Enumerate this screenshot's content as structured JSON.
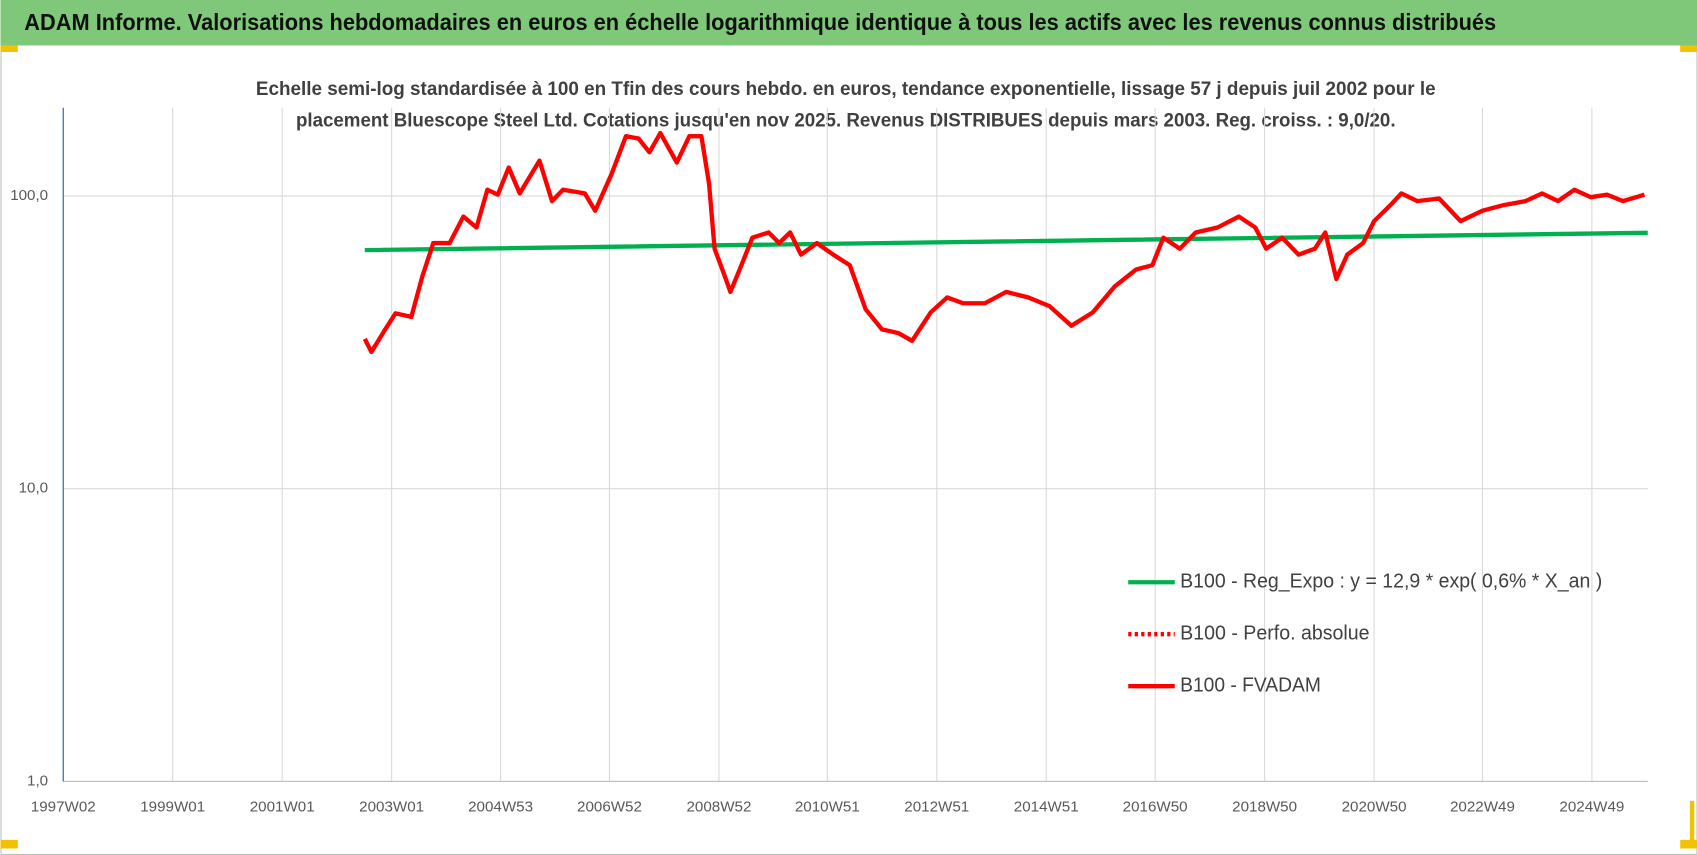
{
  "chart_data": {
    "type": "line",
    "title": "ADAM Informe. Valorisations hebdomadaires en euros en échelle logarithmique identique à tous les actifs avec les revenus connus distribués",
    "subtitle": [
      "Echelle semi-log standardisée à 100 en Tfin des cours hebdo. en euros, tendance exponentielle, lissage 57 j depuis juil 2002 pour le",
      "placement Bluescope Steel Ltd. Cotations jusqu'en nov 2025. Revenus DISTRIBUES depuis mars 2003. Reg. croiss. : 9,0/20."
    ],
    "log_scale": true,
    "grid": true,
    "legend_position": "right",
    "xlim": [
      1997.0,
      2025.95
    ],
    "xticks": [
      {
        "value": 1997.0,
        "label": "1997W02"
      },
      {
        "value": 1999.0,
        "label": "1999W01"
      },
      {
        "value": 2001.0,
        "label": "2001W01"
      },
      {
        "value": 2003.0,
        "label": "2003W01"
      },
      {
        "value": 2004.99,
        "label": "2004W53"
      },
      {
        "value": 2006.98,
        "label": "2006W52"
      },
      {
        "value": 2008.98,
        "label": "2008W52"
      },
      {
        "value": 2010.96,
        "label": "2010W51"
      },
      {
        "value": 2012.96,
        "label": "2012W51"
      },
      {
        "value": 2014.96,
        "label": "2014W51"
      },
      {
        "value": 2016.95,
        "label": "2016W50"
      },
      {
        "value": 2018.95,
        "label": "2018W50"
      },
      {
        "value": 2020.95,
        "label": "2020W50"
      },
      {
        "value": 2022.93,
        "label": "2022W49"
      },
      {
        "value": 2024.93,
        "label": "2024W49"
      }
    ],
    "ylim": [
      1,
      200
    ],
    "yticks": [
      {
        "value": 1,
        "label": "1,0"
      },
      {
        "value": 10,
        "label": "10,0"
      },
      {
        "value": 100,
        "label": "100,0"
      }
    ],
    "series": [
      {
        "name": "B100 - Reg_Expo : y = 12,9 * exp( 0,6% *  X_an )",
        "color": "#00b050",
        "style": "solid",
        "x": [
          2002.51,
          2014.2,
          2025.95
        ],
        "values": [
          65.3,
          69.9,
          74.8
        ]
      },
      {
        "name": "B100 - Perfo. absolue",
        "color": "#ff0000",
        "style": "dotted",
        "x": [],
        "values": []
      },
      {
        "name": "B100 - FVADAM",
        "color": "#ff0000",
        "style": "solid",
        "x": [
          2002.51,
          2002.63,
          2002.87,
          2003.07,
          2003.36,
          2003.56,
          2003.76,
          2004.06,
          2004.31,
          2004.55,
          2004.75,
          2004.94,
          2005.14,
          2005.34,
          2005.7,
          2005.93,
          2006.13,
          2006.53,
          2006.72,
          2007.02,
          2007.28,
          2007.51,
          2007.71,
          2007.91,
          2008.21,
          2008.44,
          2008.66,
          2008.8,
          2008.9,
          2009.09,
          2009.19,
          2009.39,
          2009.59,
          2009.89,
          2010.08,
          2010.28,
          2010.48,
          2010.77,
          2011.07,
          2011.37,
          2011.66,
          2011.96,
          2012.26,
          2012.51,
          2012.85,
          2013.15,
          2013.44,
          2013.84,
          2014.23,
          2014.63,
          2015.02,
          2015.42,
          2015.81,
          2016.21,
          2016.6,
          2016.9,
          2017.1,
          2017.4,
          2017.69,
          2018.09,
          2018.48,
          2018.78,
          2018.98,
          2019.27,
          2019.57,
          2019.87,
          2020.06,
          2020.26,
          2020.46,
          2020.75,
          2020.95,
          2021.25,
          2021.45,
          2021.74,
          2022.14,
          2022.53,
          2022.93,
          2023.32,
          2023.72,
          2024.02,
          2024.31,
          2024.61,
          2024.91,
          2025.21,
          2025.5,
          2025.89
        ],
        "values": [
          32.5,
          29.3,
          34.7,
          39.7,
          38.6,
          53,
          69,
          69,
          85,
          78,
          105,
          101,
          125,
          102,
          132,
          96,
          105,
          102,
          89,
          119,
          160,
          157,
          141,
          164,
          130,
          160,
          160,
          110,
          66,
          53,
          47,
          58,
          72,
          75,
          69,
          75,
          63,
          69,
          63,
          58,
          41,
          35,
          34,
          32,
          40,
          45,
          43,
          43,
          47,
          45,
          42,
          36,
          40,
          49,
          56,
          58,
          72,
          66,
          75,
          78,
          85,
          78,
          66,
          72,
          63,
          66,
          75,
          52,
          63,
          69,
          82,
          93,
          102,
          96,
          98,
          82,
          89,
          93,
          96,
          102,
          96,
          105,
          99,
          101,
          96,
          101
        ]
      }
    ]
  }
}
